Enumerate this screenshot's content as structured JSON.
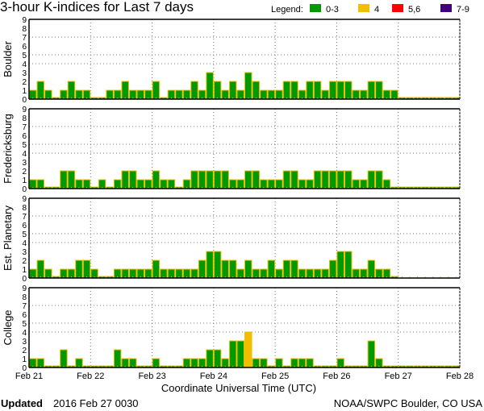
{
  "title": "3-hour K-indices for Last 7 days",
  "legend": {
    "label": "Legend:",
    "items": [
      {
        "label": "0-3",
        "color": "#009a00"
      },
      {
        "label": "4",
        "color": "#f2bf00"
      },
      {
        "label": "5,6",
        "color": "#ff0000"
      },
      {
        "label": "7-9",
        "color": "#400080"
      }
    ]
  },
  "footer": {
    "updated_label": "Updated",
    "updated_value": "2016 Feb 27 0030",
    "source": "NOAA/SWPC Boulder, CO USA"
  },
  "chart_data": {
    "type": "bar",
    "xlabel": "Coordinate Universal Time (UTC)",
    "x_ticks": [
      "Feb 21",
      "Feb 22",
      "Feb 23",
      "Feb 24",
      "Feb 25",
      "Feb 26",
      "Feb 27",
      "Feb 28"
    ],
    "ylim": [
      0,
      9
    ],
    "y_ticks": [
      0,
      1,
      2,
      3,
      4,
      5,
      6,
      7,
      8,
      9
    ],
    "y_gridlines": [
      4,
      5,
      7
    ],
    "bars_per_day": 8,
    "bar_outline_color": "#f2bf00",
    "panels": [
      {
        "name": "Boulder",
        "values": [
          1,
          2,
          1,
          0,
          1,
          2,
          1,
          1,
          0,
          0,
          1,
          1,
          2,
          1,
          1,
          1,
          2,
          0,
          1,
          1,
          1,
          2,
          1,
          3,
          2,
          1,
          2,
          1,
          3,
          2,
          1,
          1,
          1,
          2,
          2,
          1,
          2,
          2,
          1,
          2,
          2,
          2,
          1,
          1,
          2,
          2,
          1,
          1,
          0,
          0,
          0,
          0,
          0,
          0,
          0,
          0
        ]
      },
      {
        "name": "Fredericksburg",
        "values": [
          1,
          1,
          0,
          0,
          2,
          2,
          1,
          1,
          0,
          1,
          0,
          1,
          2,
          2,
          1,
          1,
          2,
          1,
          1,
          0,
          1,
          2,
          2,
          2,
          2,
          2,
          1,
          1,
          2,
          2,
          1,
          1,
          1,
          2,
          2,
          1,
          1,
          2,
          2,
          2,
          2,
          2,
          1,
          1,
          2,
          2,
          1,
          0,
          0,
          0,
          0,
          0,
          0,
          0,
          0,
          0
        ]
      },
      {
        "name": "Est. Planetary",
        "values": [
          1,
          2,
          1,
          0,
          1,
          1,
          2,
          2,
          1,
          0,
          0,
          1,
          1,
          1,
          1,
          1,
          2,
          1,
          1,
          1,
          1,
          1,
          2,
          3,
          3,
          2,
          2,
          1,
          2,
          1,
          1,
          2,
          1,
          2,
          2,
          1,
          1,
          1,
          1,
          2,
          3,
          3,
          1,
          1,
          2,
          1,
          1,
          0,
          null,
          null,
          null,
          null,
          null,
          null,
          null,
          null
        ]
      },
      {
        "name": "College",
        "values": [
          1,
          1,
          0,
          0,
          2,
          0,
          1,
          0,
          0,
          0,
          0,
          2,
          1,
          1,
          0,
          0,
          1,
          0,
          0,
          0,
          1,
          1,
          1,
          2,
          2,
          1,
          3,
          3,
          4,
          1,
          1,
          0,
          1,
          0,
          1,
          1,
          1,
          0,
          0,
          0,
          1,
          0,
          0,
          0,
          3,
          1,
          0,
          0,
          0,
          0,
          0,
          0,
          0,
          0,
          0,
          0
        ]
      }
    ]
  }
}
